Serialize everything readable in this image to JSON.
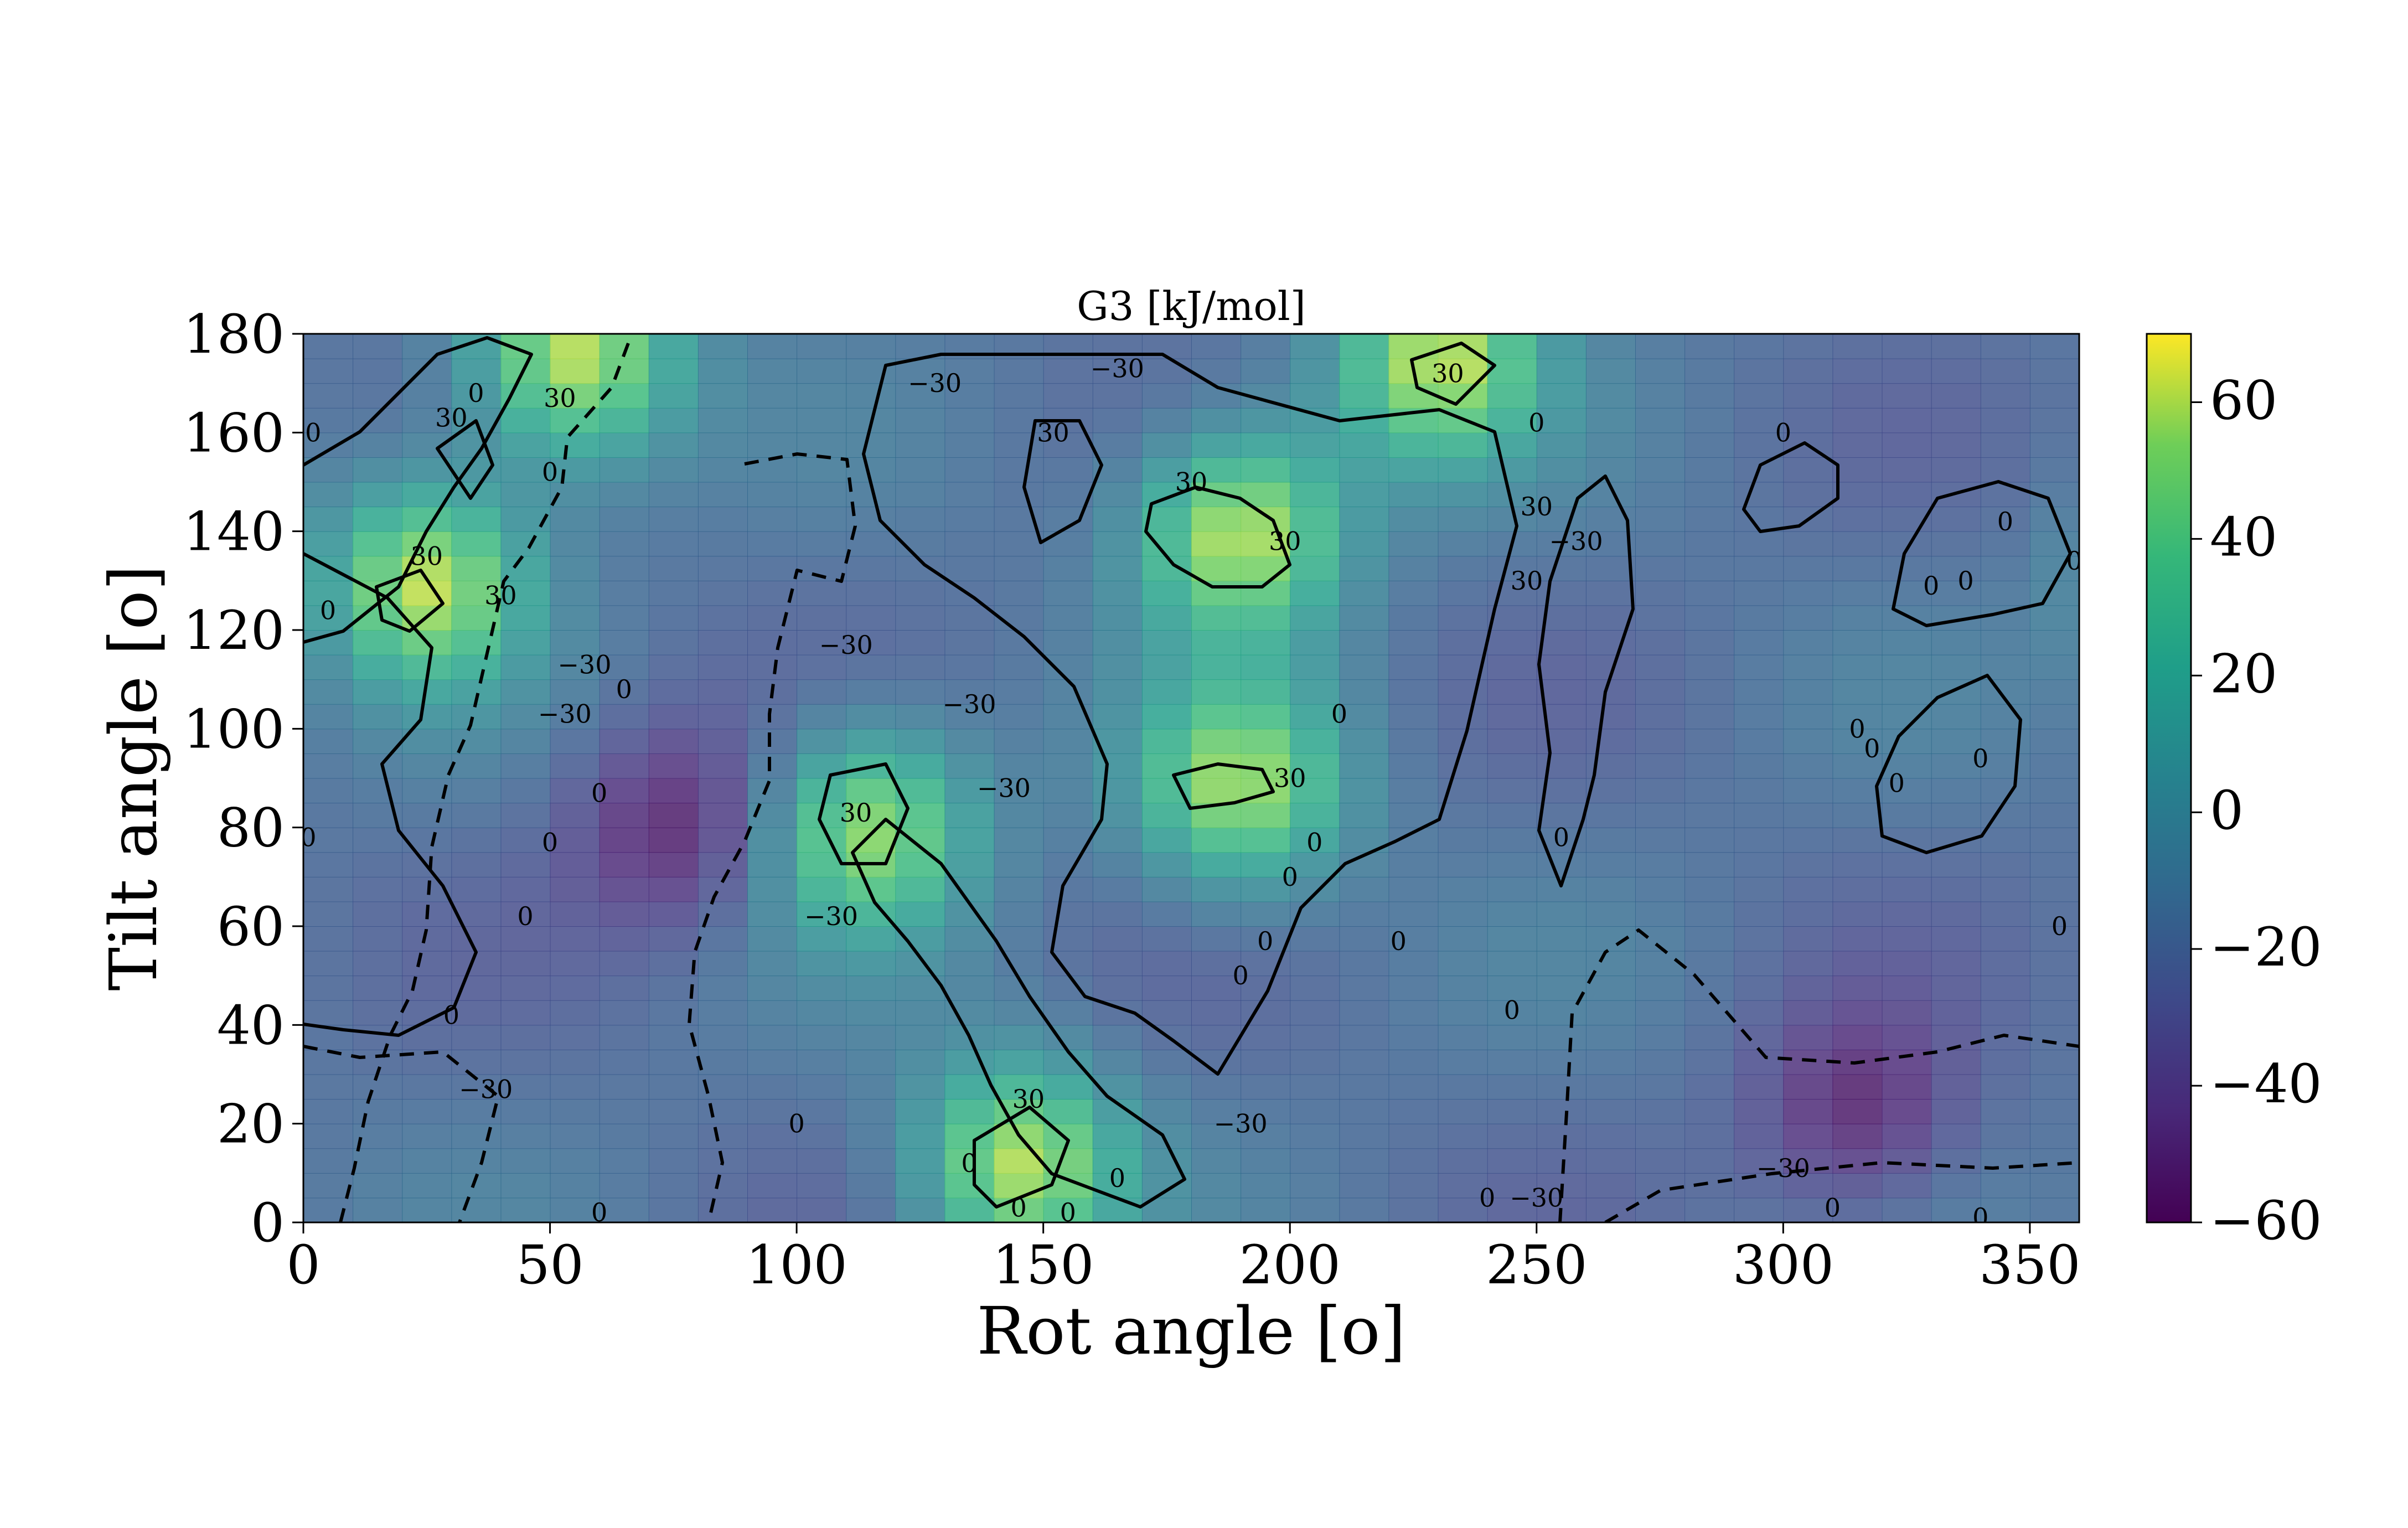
{
  "chart_data": {
    "type": "heatmap",
    "title": "G3 [kJ/mol]",
    "xlabel": "Rot angle [$^o$]",
    "ylabel": "Tilt angle [$^o$]",
    "xlabel_display": "Rot angle [o]",
    "ylabel_display": "Tilt angle [o]",
    "xlim": [
      0,
      360
    ],
    "ylim": [
      0,
      180
    ],
    "xticks": [
      0,
      50,
      100,
      150,
      200,
      250,
      300,
      350
    ],
    "yticks": [
      0,
      20,
      40,
      60,
      80,
      100,
      120,
      140,
      160,
      180
    ],
    "colorbar": {
      "colormap": "viridis",
      "range": [
        -60,
        70
      ],
      "ticks": [
        60,
        40,
        20,
        0,
        -20,
        -40,
        -60
      ],
      "tick_labels": [
        "60",
        "40",
        "20",
        "0",
        "−20",
        "−40",
        "−60"
      ]
    },
    "grid_resolution_deg": 10,
    "approx_extrema": [
      {
        "x": 25,
        "y": 130,
        "value": 60
      },
      {
        "x": 55,
        "y": 175,
        "value": 65
      },
      {
        "x": 115,
        "y": 80,
        "value": 55
      },
      {
        "x": 145,
        "y": 12,
        "value": 60
      },
      {
        "x": 190,
        "y": 140,
        "value": 65
      },
      {
        "x": 190,
        "y": 88,
        "value": 55
      },
      {
        "x": 230,
        "y": 175,
        "value": 60
      },
      {
        "x": 75,
        "y": 80,
        "value": -55
      },
      {
        "x": 315,
        "y": 22,
        "value": -55
      }
    ],
    "contour_levels": [
      -30,
      0,
      30
    ],
    "contour_styles": {
      "-30": "dashed",
      "0": "solid",
      "30": "solid"
    },
    "contour_labels": [
      {
        "x": 30,
        "y": 163,
        "text": "30"
      },
      {
        "x": 52,
        "y": 167,
        "text": "30"
      },
      {
        "x": 25,
        "y": 135,
        "text": "30"
      },
      {
        "x": 40,
        "y": 127,
        "text": "30"
      },
      {
        "x": 2,
        "y": 160,
        "text": "0"
      },
      {
        "x": 5,
        "y": 124,
        "text": "0"
      },
      {
        "x": 35,
        "y": 168,
        "text": "0"
      },
      {
        "x": 50,
        "y": 152,
        "text": "0"
      },
      {
        "x": 57,
        "y": 113,
        "text": "−30"
      },
      {
        "x": 53,
        "y": 103,
        "text": "−30"
      },
      {
        "x": 65,
        "y": 108,
        "text": "0"
      },
      {
        "x": 60,
        "y": 87,
        "text": "0"
      },
      {
        "x": 50,
        "y": 77,
        "text": "0"
      },
      {
        "x": 45,
        "y": 62,
        "text": "0"
      },
      {
        "x": 30,
        "y": 42,
        "text": "0"
      },
      {
        "x": 37,
        "y": 27,
        "text": "−30"
      },
      {
        "x": 1,
        "y": 78,
        "text": "0"
      },
      {
        "x": 110,
        "y": 117,
        "text": "−30"
      },
      {
        "x": 112,
        "y": 83,
        "text": "30"
      },
      {
        "x": 107,
        "y": 62,
        "text": "−30"
      },
      {
        "x": 100,
        "y": 20,
        "text": "0"
      },
      {
        "x": 135,
        "y": 105,
        "text": "−30"
      },
      {
        "x": 142,
        "y": 88,
        "text": "−30"
      },
      {
        "x": 152,
        "y": 160,
        "text": "30"
      },
      {
        "x": 128,
        "y": 170,
        "text": "−30"
      },
      {
        "x": 165,
        "y": 173,
        "text": "−30"
      },
      {
        "x": 180,
        "y": 150,
        "text": "30"
      },
      {
        "x": 199,
        "y": 138,
        "text": "30"
      },
      {
        "x": 210,
        "y": 103,
        "text": "0"
      },
      {
        "x": 200,
        "y": 90,
        "text": "30"
      },
      {
        "x": 205,
        "y": 77,
        "text": "0"
      },
      {
        "x": 200,
        "y": 70,
        "text": "0"
      },
      {
        "x": 195,
        "y": 57,
        "text": "0"
      },
      {
        "x": 190,
        "y": 50,
        "text": "0"
      },
      {
        "x": 222,
        "y": 57,
        "text": "0"
      },
      {
        "x": 232,
        "y": 172,
        "text": "30"
      },
      {
        "x": 250,
        "y": 162,
        "text": "0"
      },
      {
        "x": 250,
        "y": 145,
        "text": "30"
      },
      {
        "x": 248,
        "y": 130,
        "text": "30"
      },
      {
        "x": 258,
        "y": 138,
        "text": "−30"
      },
      {
        "x": 255,
        "y": 78,
        "text": "0"
      },
      {
        "x": 245,
        "y": 43,
        "text": "0"
      },
      {
        "x": 240,
        "y": 5,
        "text": "0"
      },
      {
        "x": 250,
        "y": 5,
        "text": "−30"
      },
      {
        "x": 190,
        "y": 20,
        "text": "−30"
      },
      {
        "x": 147,
        "y": 25,
        "text": "30"
      },
      {
        "x": 135,
        "y": 12,
        "text": "0"
      },
      {
        "x": 145,
        "y": 3,
        "text": "0"
      },
      {
        "x": 155,
        "y": 2,
        "text": "0"
      },
      {
        "x": 165,
        "y": 9,
        "text": "0"
      },
      {
        "x": 60,
        "y": 2,
        "text": "0"
      },
      {
        "x": 300,
        "y": 11,
        "text": "−30"
      },
      {
        "x": 310,
        "y": 3,
        "text": "0"
      },
      {
        "x": 340,
        "y": 1,
        "text": "0"
      },
      {
        "x": 300,
        "y": 160,
        "text": "0"
      },
      {
        "x": 345,
        "y": 142,
        "text": "0"
      },
      {
        "x": 337,
        "y": 130,
        "text": "0"
      },
      {
        "x": 330,
        "y": 129,
        "text": "0"
      },
      {
        "x": 340,
        "y": 94,
        "text": "0"
      },
      {
        "x": 323,
        "y": 89,
        "text": "0"
      },
      {
        "x": 315,
        "y": 100,
        "text": "0"
      },
      {
        "x": 318,
        "y": 96,
        "text": "0"
      },
      {
        "x": 356,
        "y": 60,
        "text": "0"
      },
      {
        "x": 359,
        "y": 134,
        "text": "0"
      }
    ]
  }
}
